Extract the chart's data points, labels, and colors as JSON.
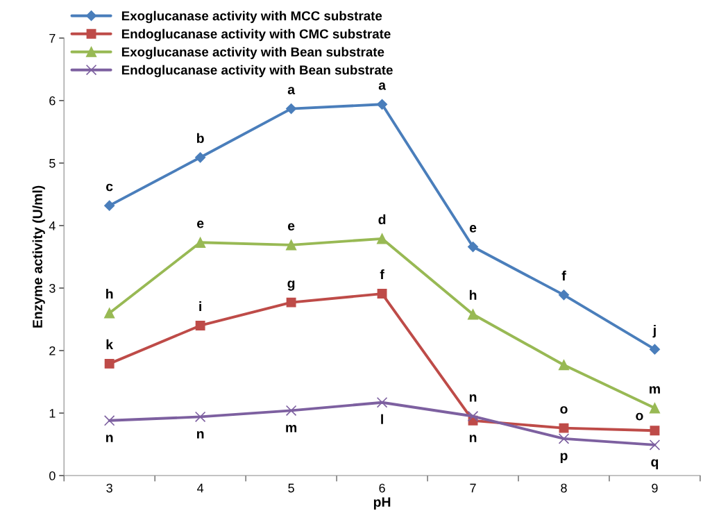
{
  "chart_data": {
    "type": "line",
    "xlabel": "pH",
    "ylabel": "Enzyme activity (U/ml)",
    "categories": [
      "3",
      "4",
      "5",
      "6",
      "7",
      "8",
      "9"
    ],
    "ylim": [
      0,
      7
    ],
    "yticks": [
      0,
      1,
      2,
      3,
      4,
      5,
      6,
      7
    ],
    "grid": false,
    "legend": "top left",
    "series": [
      {
        "name": "Exoglucanase activity with MCC substrate",
        "color": "#4a7ebb",
        "marker": "diamond",
        "values": [
          4.32,
          5.09,
          5.87,
          5.94,
          3.66,
          2.89,
          2.02
        ]
      },
      {
        "name": "Endoglucanase activity with CMC substrate",
        "color": "#be4b48",
        "marker": "square",
        "values": [
          1.79,
          2.4,
          2.77,
          2.91,
          0.88,
          0.76,
          0.72
        ]
      },
      {
        "name": "Exoglucanase activity with Bean substrate",
        "color": "#98b954",
        "marker": "triangle",
        "values": [
          2.6,
          3.73,
          3.69,
          3.79,
          2.58,
          1.77,
          1.08
        ]
      },
      {
        "name": "Endoglucanase activity with Bean substrate",
        "color": "#7d60a0",
        "marker": "cross",
        "values": [
          0.88,
          0.94,
          1.04,
          1.17,
          0.95,
          0.59,
          0.49
        ]
      }
    ],
    "annotations": [
      {
        "text": "c",
        "x": "3",
        "y": 4.32
      },
      {
        "text": "b",
        "x": "4",
        "y": 5.09
      },
      {
        "text": "a",
        "x": "5",
        "y": 5.87
      },
      {
        "text": "a",
        "x": "6",
        "y": 5.94
      },
      {
        "text": "e",
        "x": "7",
        "y": 3.66
      },
      {
        "text": "f",
        "x": "8",
        "y": 2.89
      },
      {
        "text": "j",
        "x": "9",
        "y": 2.02
      },
      {
        "text": "h",
        "x": "3",
        "y": 2.6
      },
      {
        "text": "e",
        "x": "4",
        "y": 3.73
      },
      {
        "text": "e",
        "x": "5",
        "y": 3.69
      },
      {
        "text": "d",
        "x": "6",
        "y": 3.79
      },
      {
        "text": "h",
        "x": "7",
        "y": 2.58
      },
      {
        "text": "m",
        "x": "9",
        "y": 1.08
      },
      {
        "text": "k",
        "x": "3",
        "y": 1.79
      },
      {
        "text": "i",
        "x": "4",
        "y": 2.4
      },
      {
        "text": "g",
        "x": "5",
        "y": 2.77
      },
      {
        "text": "f",
        "x": "6",
        "y": 2.91
      },
      {
        "text": "n",
        "x": "7",
        "y": 0.88
      },
      {
        "text": "o",
        "x": "8",
        "y": 0.76
      },
      {
        "text": "o",
        "x": "9",
        "y": 0.72
      },
      {
        "text": "n",
        "x": "3",
        "y": 0.88
      },
      {
        "text": "n",
        "x": "4",
        "y": 0.94
      },
      {
        "text": "m",
        "x": "5",
        "y": 1.04
      },
      {
        "text": "l",
        "x": "6",
        "y": 1.17
      },
      {
        "text": "n",
        "x": "7",
        "y": 0.95
      },
      {
        "text": "p",
        "x": "8",
        "y": 0.59
      },
      {
        "text": "q",
        "x": "9",
        "y": 0.49
      }
    ]
  }
}
